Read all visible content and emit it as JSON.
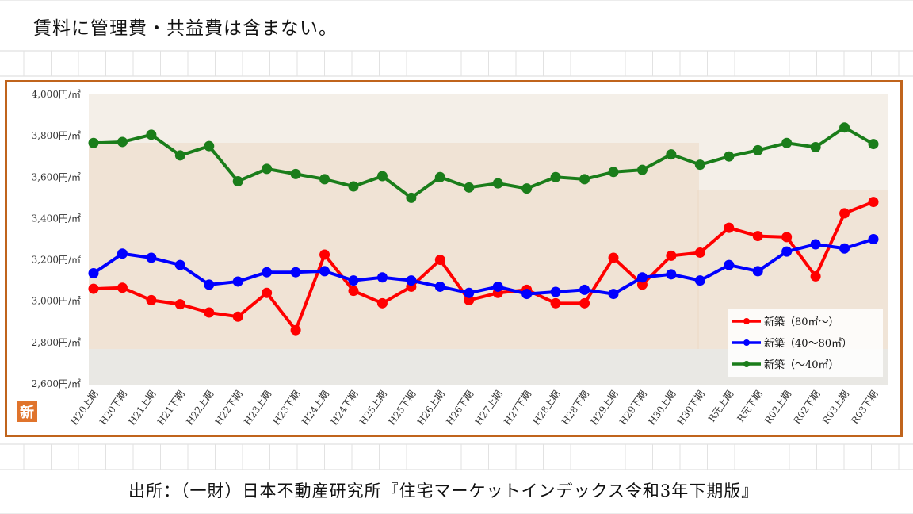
{
  "note": "賃料に管理費・共益費は含まない。",
  "source": "出所：（一財）日本不動産研究所『住宅マーケットインデックス令和3年下期版』",
  "badge": "新",
  "colors": {
    "frame": "#c0641c",
    "red": "#ff0000",
    "blue": "#0000ff",
    "green": "#1a7d1a"
  },
  "chart_data": {
    "type": "line",
    "title": "",
    "ylim": [
      2600,
      4000
    ],
    "yticks": [
      2600,
      2800,
      3000,
      3200,
      3400,
      3600,
      3800,
      4000
    ],
    "y_tick_labels": [
      "2,600円/㎡",
      "2,800円/㎡",
      "3,000円/㎡",
      "3,200円/㎡",
      "3,400円/㎡",
      "3,600円/㎡",
      "3,800円/㎡",
      "4,000円/㎡"
    ],
    "categories": [
      "H20上期",
      "H20下期",
      "H21上期",
      "H21下期",
      "H22上期",
      "H22下期",
      "H23上期",
      "H23下期",
      "H24上期",
      "H24下期",
      "H25上期",
      "H25下期",
      "H26上期",
      "H26下期",
      "H27上期",
      "H27下期",
      "H28上期",
      "H28下期",
      "H29上期",
      "H29下期",
      "H30上期",
      "H30下期",
      "R元上期",
      "R元下期",
      "R02上期",
      "R02下期",
      "R03上期",
      "R03下期"
    ],
    "legend_position": "bottom-right",
    "grid": false,
    "series": [
      {
        "name": "新築（80㎡～）",
        "color": "#ff0000",
        "values": [
          3060,
          3065,
          3005,
          2985,
          2945,
          2925,
          3040,
          2860,
          3225,
          3050,
          2990,
          3070,
          3200,
          3005,
          3040,
          3055,
          2990,
          2990,
          3210,
          3080,
          3220,
          3235,
          3355,
          3315,
          3310,
          3120,
          3425,
          3480
        ]
      },
      {
        "name": "新築（40～80㎡）",
        "color": "#0000ff",
        "values": [
          3135,
          3230,
          3210,
          3175,
          3080,
          3095,
          3140,
          3140,
          3145,
          3100,
          3115,
          3100,
          3070,
          3040,
          3070,
          3035,
          3045,
          3055,
          3035,
          3115,
          3130,
          3100,
          3175,
          3145,
          3240,
          3275,
          3255,
          3300
        ]
      },
      {
        "name": "新築（～40㎡）",
        "color": "#1a7d1a",
        "values": [
          3765,
          3770,
          3805,
          3705,
          3750,
          3580,
          3640,
          3615,
          3590,
          3555,
          3605,
          3500,
          3600,
          3550,
          3570,
          3545,
          3600,
          3590,
          3625,
          3635,
          3710,
          3660,
          3700,
          3730,
          3765,
          3745,
          3840,
          3760
        ]
      }
    ]
  }
}
